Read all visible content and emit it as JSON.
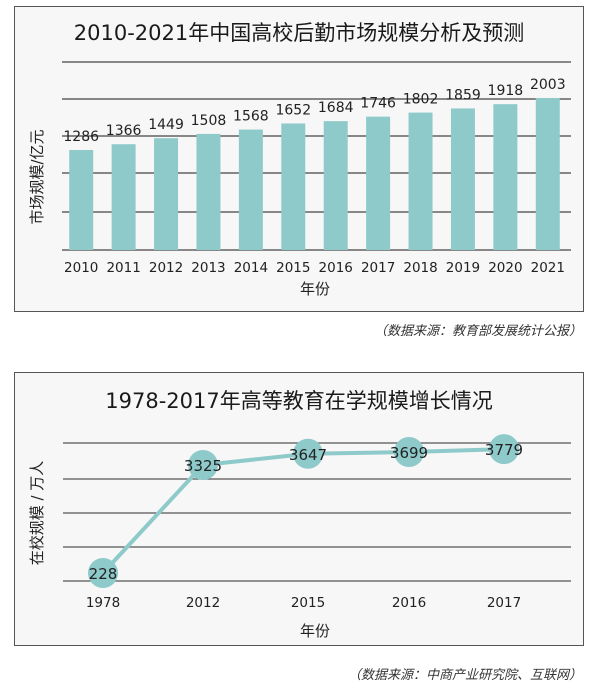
{
  "chart_data": [
    {
      "type": "bar",
      "title": "2010-2021年中国高校后勤市场规模分析及预测",
      "xlabel": "年份",
      "ylabel": "市场规模/亿元",
      "categories": [
        "2010",
        "2011",
        "2012",
        "2013",
        "2014",
        "2015",
        "2016",
        "2017",
        "2018",
        "2019",
        "2020",
        "2021"
      ],
      "values": [
        1286,
        1366,
        1449,
        1508,
        1568,
        1652,
        1684,
        1746,
        1802,
        1859,
        1918,
        2003
      ],
      "grid": true,
      "bar_color": "#8fcacb",
      "source": "（数据来源：教育部发展统计公报）"
    },
    {
      "type": "line",
      "title": "1978-2017年高等教育在学规模增长情况",
      "xlabel": "年份",
      "ylabel": "在校规模 / 万人",
      "categories": [
        "1978",
        "2012",
        "2015",
        "2016",
        "2017"
      ],
      "values": [
        228,
        3325,
        3647,
        3699,
        3779
      ],
      "grid": true,
      "line_color": "#8fcacb",
      "source": "（数据来源：中商产业研究院、互联网）"
    }
  ]
}
